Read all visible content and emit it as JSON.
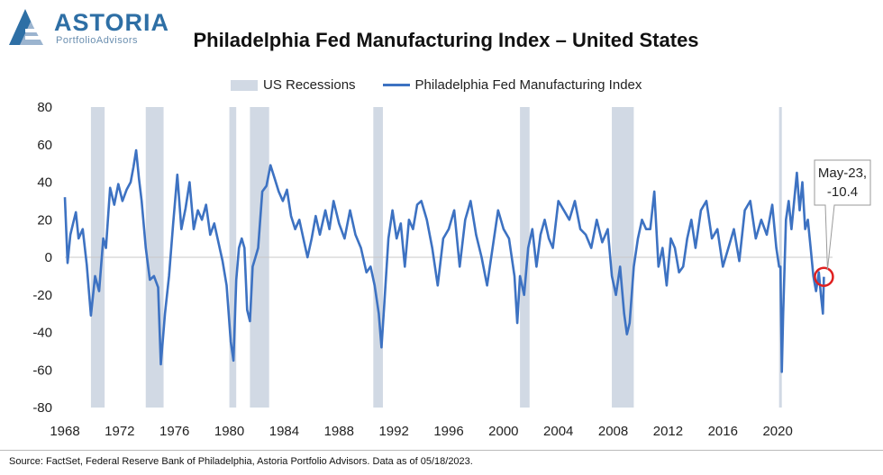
{
  "logo": {
    "name": "ASTORIA",
    "tagline": "PortfolioAdvisors"
  },
  "title": "Philadelphia Fed Manufacturing Index – United States",
  "source": "Source: FactSet, Federal Reserve Bank of Philadelphia, Astoria Portfolio Advisors. Data as of 05/18/2023.",
  "colors": {
    "line": "#3d72c2",
    "recession": "#d1d9e4",
    "highlight": "#e02020",
    "brand": "#2e6fa5"
  },
  "chart_data": {
    "type": "line",
    "title": "Philadelphia Fed Manufacturing Index – United States",
    "xlabel": "",
    "ylabel": "",
    "ylim": [
      -80,
      80
    ],
    "xlim": [
      1968,
      2024
    ],
    "y_ticks": [
      80,
      60,
      40,
      20,
      0,
      -20,
      -40,
      -60,
      -80
    ],
    "y_tick_labels": [
      "80",
      "60",
      "40",
      "20",
      "0",
      "-20",
      "-40",
      "-60",
      "-80"
    ],
    "x_ticks": [
      1968,
      1972,
      1976,
      1980,
      1984,
      1988,
      1992,
      1996,
      2000,
      2004,
      2008,
      2012,
      2016,
      2020
    ],
    "x_tick_labels": [
      "1968",
      "1972",
      "1976",
      "1980",
      "1984",
      "1988",
      "1992",
      "1996",
      "2000",
      "2004",
      "2008",
      "2012",
      "2016",
      "2020"
    ],
    "legend": [
      "US Recessions",
      "Philadelphia Fed Manufacturing Index"
    ],
    "legend_position": "top",
    "grid": false,
    "recessions": [
      [
        1969.9,
        1970.9
      ],
      [
        1973.9,
        1975.2
      ],
      [
        1980.0,
        1980.5
      ],
      [
        1981.5,
        1982.9
      ],
      [
        1990.5,
        1991.2
      ],
      [
        2001.2,
        2001.9
      ],
      [
        2007.9,
        2009.5
      ],
      [
        2020.1,
        2020.3
      ]
    ],
    "series": [
      {
        "name": "Philadelphia Fed Manufacturing Index",
        "x": [
          1968.0,
          1968.2,
          1968.4,
          1968.6,
          1968.8,
          1969.0,
          1969.3,
          1969.6,
          1969.9,
          1970.2,
          1970.5,
          1970.8,
          1971.0,
          1971.3,
          1971.6,
          1971.9,
          1972.2,
          1972.5,
          1972.8,
          1973.0,
          1973.2,
          1973.4,
          1973.6,
          1973.9,
          1974.2,
          1974.5,
          1974.8,
          1975.0,
          1975.3,
          1975.6,
          1975.9,
          1976.2,
          1976.5,
          1976.8,
          1977.1,
          1977.4,
          1977.7,
          1978.0,
          1978.3,
          1978.6,
          1978.9,
          1979.2,
          1979.5,
          1979.8,
          1980.1,
          1980.3,
          1980.5,
          1980.7,
          1980.9,
          1981.1,
          1981.3,
          1981.5,
          1981.7,
          1981.9,
          1982.1,
          1982.4,
          1982.7,
          1983.0,
          1983.3,
          1983.6,
          1983.9,
          1984.2,
          1984.5,
          1984.8,
          1985.1,
          1985.4,
          1985.7,
          1986.0,
          1986.3,
          1986.6,
          1987.0,
          1987.3,
          1987.6,
          1988.0,
          1988.4,
          1988.8,
          1989.2,
          1989.6,
          1990.0,
          1990.3,
          1990.6,
          1990.9,
          1991.1,
          1991.3,
          1991.6,
          1991.9,
          1992.2,
          1992.5,
          1992.8,
          1993.1,
          1993.4,
          1993.7,
          1994.0,
          1994.4,
          1994.8,
          1995.2,
          1995.6,
          1996.0,
          1996.4,
          1996.8,
          1997.2,
          1997.6,
          1998.0,
          1998.4,
          1998.8,
          1999.2,
          1999.6,
          2000.0,
          2000.4,
          2000.8,
          2001.0,
          2001.2,
          2001.5,
          2001.8,
          2002.1,
          2002.4,
          2002.7,
          2003.0,
          2003.3,
          2003.6,
          2004.0,
          2004.4,
          2004.8,
          2005.2,
          2005.6,
          2006.0,
          2006.4,
          2006.8,
          2007.2,
          2007.6,
          2007.9,
          2008.2,
          2008.5,
          2008.8,
          2009.0,
          2009.2,
          2009.5,
          2009.8,
          2010.1,
          2010.4,
          2010.7,
          2011.0,
          2011.3,
          2011.6,
          2011.9,
          2012.2,
          2012.5,
          2012.8,
          2013.1,
          2013.4,
          2013.7,
          2014.0,
          2014.4,
          2014.8,
          2015.2,
          2015.6,
          2016.0,
          2016.4,
          2016.8,
          2017.2,
          2017.6,
          2018.0,
          2018.4,
          2018.8,
          2019.2,
          2019.6,
          2019.9,
          2020.1,
          2020.2,
          2020.3,
          2020.4,
          2020.6,
          2020.8,
          2021.0,
          2021.2,
          2021.4,
          2021.6,
          2021.8,
          2022.0,
          2022.2,
          2022.4,
          2022.6,
          2022.8,
          2023.0,
          2023.15,
          2023.3,
          2023.37
        ],
        "values": [
          32,
          -3,
          12,
          18,
          24,
          10,
          15,
          -4,
          -31,
          -10,
          -18,
          10,
          5,
          37,
          28,
          39,
          30,
          36,
          40,
          48,
          57,
          42,
          30,
          5,
          -12,
          -10,
          -16,
          -57,
          -30,
          -10,
          18,
          44,
          15,
          26,
          40,
          15,
          25,
          20,
          28,
          12,
          18,
          8,
          -2,
          -15,
          -45,
          -55,
          -12,
          5,
          10,
          5,
          -28,
          -34,
          -5,
          0,
          5,
          35,
          38,
          49,
          42,
          35,
          30,
          36,
          22,
          15,
          20,
          10,
          0,
          10,
          22,
          12,
          25,
          15,
          30,
          18,
          10,
          25,
          12,
          5,
          -8,
          -5,
          -15,
          -30,
          -48,
          -25,
          10,
          25,
          10,
          18,
          -5,
          20,
          15,
          28,
          30,
          20,
          5,
          -15,
          10,
          15,
          25,
          -5,
          20,
          30,
          12,
          0,
          -15,
          5,
          25,
          15,
          10,
          -10,
          -35,
          -10,
          -20,
          5,
          15,
          -5,
          12,
          20,
          10,
          5,
          30,
          25,
          20,
          30,
          15,
          12,
          5,
          20,
          8,
          15,
          -10,
          -20,
          -5,
          -30,
          -41,
          -35,
          -5,
          10,
          20,
          15,
          15,
          35,
          -5,
          5,
          -15,
          10,
          5,
          -8,
          -5,
          10,
          20,
          5,
          25,
          30,
          10,
          15,
          -5,
          5,
          15,
          -2,
          25,
          30,
          10,
          20,
          12,
          28,
          5,
          -5,
          -5,
          -61,
          -30,
          20,
          30,
          15,
          30,
          45,
          25,
          40,
          15,
          20,
          5,
          -10,
          -18,
          -8,
          -20,
          -30,
          -10.4
        ]
      }
    ],
    "annotations": [
      {
        "label_line1": "May-23,",
        "label_line2": "-10.4",
        "x": 2023.37,
        "y": -10.4
      }
    ]
  }
}
